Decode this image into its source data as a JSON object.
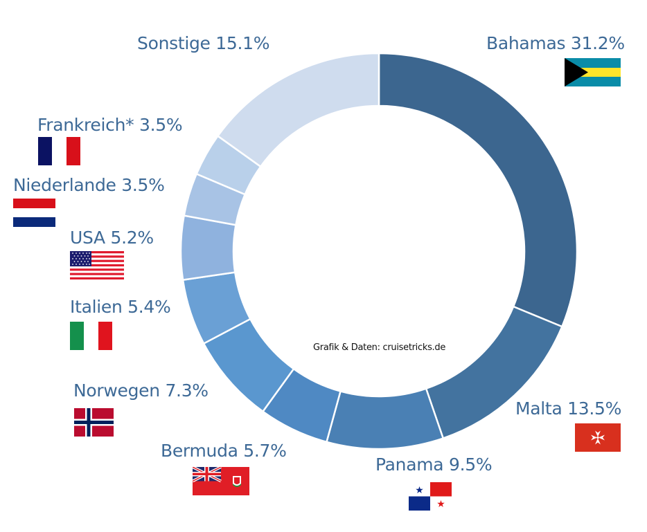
{
  "chart_data": {
    "type": "pie",
    "subtype": "donut",
    "title": "",
    "credit": "Grafik & Daten: cruisetricks.de",
    "center": [
      547,
      363
    ],
    "outer_radius": 286,
    "inner_radius": 210,
    "categories": [
      "Bahamas",
      "Malta",
      "Panama",
      "Bermuda",
      "Norwegen",
      "Italien",
      "USA",
      "Niederlande",
      "Frankreich*",
      "Sonstige"
    ],
    "values": [
      31.2,
      13.5,
      9.5,
      5.7,
      7.3,
      5.4,
      5.2,
      3.5,
      3.5,
      15.1
    ],
    "labels": [
      "Bahamas 31.2%",
      "Malta 13.5%",
      "Panama 9.5%",
      "Bermuda 5.7%",
      "Norwegen 7.3%",
      "Italien 5.4%",
      "USA 5.2%",
      "Niederlande 3.5%",
      "Frankreich* 3.5%",
      "Sonstige 15.1%"
    ],
    "colors": [
      "#3c668f",
      "#43739f",
      "#4a80b4",
      "#4f89c3",
      "#5a97cf",
      "#6aa0d5",
      "#8fb2de",
      "#a8c3e5",
      "#b9d0ea",
      "#cfdcee"
    ],
    "label_color": "#3d6996",
    "start_angle_deg": 0,
    "direction": "clockwise"
  },
  "labels": {
    "bahamas": "Bahamas 31.2%",
    "malta": "Malta 13.5%",
    "panama": "Panama 9.5%",
    "bermuda": "Bermuda 5.7%",
    "norwegen": "Norwegen 7.3%",
    "italien": "Italien 5.4%",
    "usa": "USA 5.2%",
    "niederlande": "Niederlande 3.5%",
    "frankreich": "Frankreich* 3.5%",
    "sonstige": "Sonstige 15.1%"
  },
  "flags": {
    "bahamas": "bahamas-flag-icon",
    "malta": "malta-flag-icon",
    "panama": "panama-flag-icon",
    "bermuda": "bermuda-flag-icon",
    "norwegen": "norway-flag-icon",
    "italien": "italy-flag-icon",
    "usa": "usa-flag-icon",
    "niederlande": "netherlands-flag-icon",
    "frankreich": "france-flag-icon"
  }
}
